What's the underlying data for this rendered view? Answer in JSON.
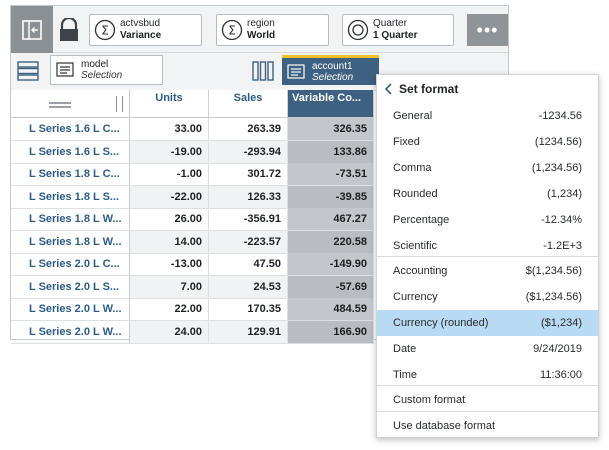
{
  "toolbar": {
    "chips": [
      {
        "label": "actvsbud",
        "value": "Variance",
        "icon": "sigma-icon"
      },
      {
        "label": "region",
        "value": "World",
        "icon": "sigma-icon"
      },
      {
        "label": "Quarter",
        "value": "1 Quarter",
        "icon": "circle-icon"
      }
    ],
    "more_label": "•••"
  },
  "axes": {
    "rows_chip": {
      "name": "model",
      "sub": "Selection"
    },
    "cols_chip": {
      "name": "account1",
      "sub": "Selection"
    }
  },
  "grid": {
    "columns": [
      "Units",
      "Sales",
      "Variable Co..."
    ],
    "rows": [
      {
        "label": "L Series 1.6 L C...",
        "values": [
          "33.00",
          "263.39",
          "326.35"
        ]
      },
      {
        "label": "L Series 1.6 L S...",
        "values": [
          "-19.00",
          "-293.94",
          "133.86"
        ]
      },
      {
        "label": "L Series 1.8 L C...",
        "values": [
          "-1.00",
          "301.72",
          "-73.51"
        ]
      },
      {
        "label": "L Series 1.8 L S...",
        "values": [
          "-22.00",
          "126.33",
          "-39.85"
        ]
      },
      {
        "label": "L Series 1.8 L W...",
        "values": [
          "26.00",
          "-356.91",
          "467.27"
        ]
      },
      {
        "label": "L Series 1.8 L W...",
        "values": [
          "14.00",
          "-223.57",
          "220.58"
        ]
      },
      {
        "label": "L Series 2.0 L C...",
        "values": [
          "-13.00",
          "47.50",
          "-149.90"
        ]
      },
      {
        "label": "L Series 2.0 L S...",
        "values": [
          "7.00",
          "24.53",
          "-57.69"
        ]
      },
      {
        "label": "L Series 2.0 L W...",
        "values": [
          "22.00",
          "170.35",
          "484.59"
        ]
      },
      {
        "label": "L Series 2.0 L W...",
        "values": [
          "24.00",
          "129.91",
          "166.90"
        ]
      }
    ]
  },
  "menu": {
    "title": "Set format",
    "items": [
      {
        "label": "General",
        "example": "-1234.56"
      },
      {
        "label": "Fixed",
        "example": "(1234.56)"
      },
      {
        "label": "Comma",
        "example": "(1,234.56)"
      },
      {
        "label": "Rounded",
        "example": "(1,234)"
      },
      {
        "label": "Percentage",
        "example": "-12.34%"
      },
      {
        "label": "Scientific",
        "example": "-1.2E+3"
      },
      {
        "label": "Accounting",
        "example": "$(1,234.56)"
      },
      {
        "label": "Currency",
        "example": "($1,234.56)"
      },
      {
        "label": "Currency (rounded)",
        "example": "($1,234)"
      },
      {
        "label": "Date",
        "example": "9/24/2019"
      },
      {
        "label": "Time",
        "example": "11:36:00"
      },
      {
        "label": "Custom format",
        "example": ""
      },
      {
        "label": "Use database format",
        "example": ""
      }
    ]
  },
  "colors": {
    "selected_header": "#3e6181",
    "accent_yellow": "#f2bf26",
    "highlight": "#b9daf3",
    "row_header_text": "#2e5c85"
  }
}
